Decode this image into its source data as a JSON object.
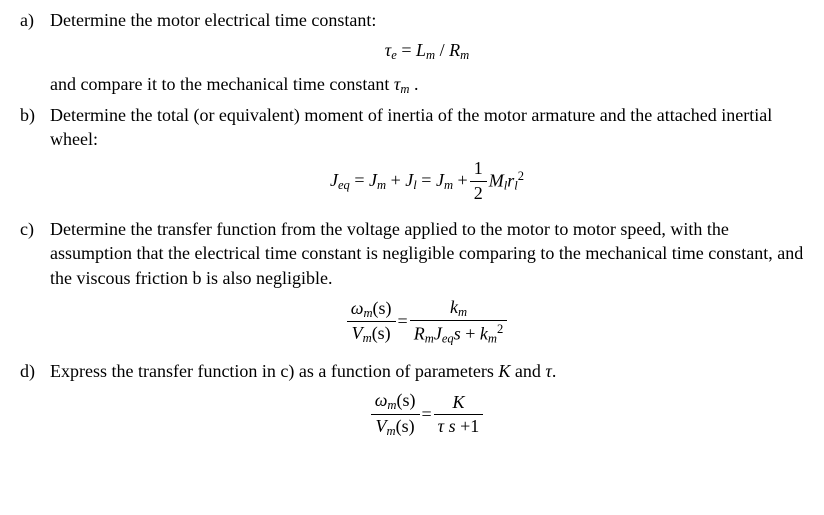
{
  "a": {
    "label": "a)",
    "text1": "Determine the motor electrical time constant:",
    "eq": {
      "lhs_var": "τ",
      "lhs_sub": "e",
      "eq": " = ",
      "r_var": "L",
      "r_sub": "m",
      "slash": " / ",
      "r2_var": "R",
      "r2_sub": "m"
    },
    "text2_a": "and compare it to the mechanical time constant ",
    "text2_tau": "τ",
    "text2_tau_sub": "m",
    "text2_b": " ."
  },
  "b": {
    "label": "b)",
    "text1": "Determine the total (or equivalent) moment of inertia of the motor armature and the attached inertial wheel:",
    "eq": {
      "J": "J",
      "eq_sub": "eq",
      "eqs": " = ",
      "Jm": "J",
      "m": "m",
      "plus": " + ",
      "Jl": "J",
      "l": "l",
      "eqs2": " = ",
      "Jm2": "J",
      "m2": "m",
      "plus2": " + ",
      "half_num": "1",
      "half_den": "2",
      "Ml": "M",
      "l2": "l",
      "r": "r",
      "l3": "l",
      "sq": "2"
    }
  },
  "c": {
    "label": "c)",
    "text1": "Determine the transfer function from the voltage applied to the motor to motor speed, with the assumption that the electrical time constant is negligible comparing to the mechanical time constant, and the viscous friction b is also negligible.",
    "eq": {
      "omega": "ω",
      "m1": "m",
      "s1": "(s)",
      "V": "V",
      "m2": "m",
      "s2": "(s)",
      "eqs": " = ",
      "k": "k",
      "m3": "m",
      "R": "R",
      "m4": "m",
      "J": "J",
      "eq_sub": "eq",
      "s": "s",
      "plus": " + ",
      "k2": "k",
      "m5": "m",
      "sq": "2"
    }
  },
  "d": {
    "label": "d)",
    "text1_a": "Express the transfer function in c) as a function of parameters ",
    "K": "K",
    "and": " and ",
    "tau": "τ",
    "text1_b": ".",
    "eq": {
      "omega": "ω",
      "m1": "m",
      "s1": "(s)",
      "V": "V",
      "m2": "m",
      "s2": "(s)",
      "eqs": " = ",
      "Knum": "K",
      "tau": "τ",
      "s": " s",
      "plus": " +",
      "one": "1"
    }
  }
}
